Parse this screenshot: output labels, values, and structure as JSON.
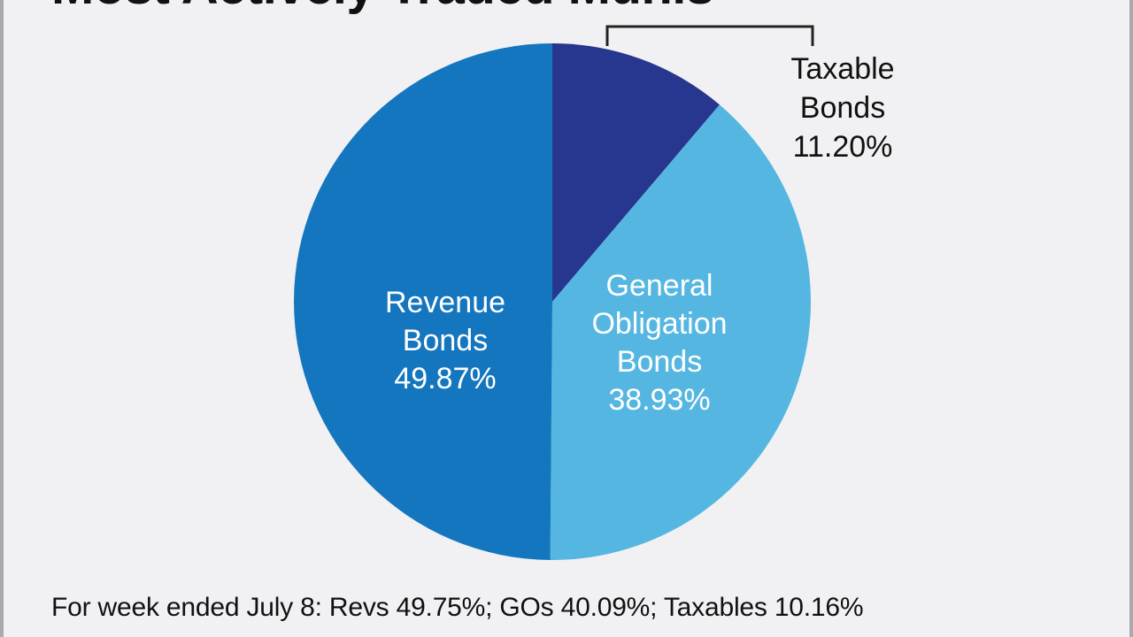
{
  "title": "Most Actively Traded Munis",
  "footnote": "For week ended July 8: Revs 49.75%; GOs 40.09%; Taxables 10.16%",
  "chart_data": {
    "type": "pie",
    "title": "Most Actively Traded Munis",
    "slices": [
      {
        "label": "Taxable Bonds",
        "label_lines": [
          "Taxable",
          "Bonds",
          "11.20%"
        ],
        "value": 11.2,
        "color": "#27368e"
      },
      {
        "label": "General Obligation Bonds",
        "label_lines": [
          "General",
          "Obligation",
          "Bonds",
          "38.93%"
        ],
        "value": 38.93,
        "color": "#55b7e1"
      },
      {
        "label": "Revenue Bonds",
        "label_lines": [
          "Revenue",
          "Bonds",
          "49.87%"
        ],
        "value": 49.87,
        "color": "#1476be"
      }
    ],
    "label_colors": {
      "inside": "#ffffff",
      "outside": "#111111"
    },
    "start_angle_deg": 0,
    "direction": "clockwise",
    "legend": "none"
  }
}
